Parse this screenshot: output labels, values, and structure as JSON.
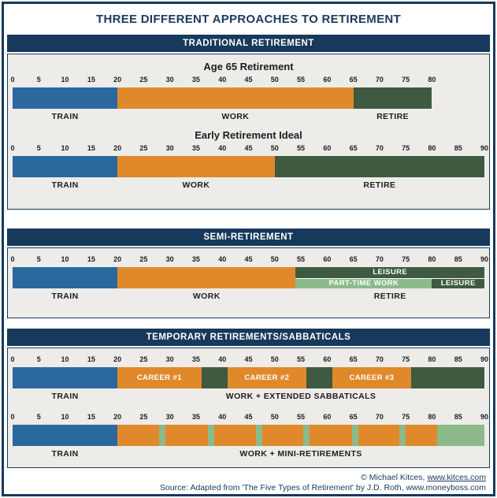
{
  "title": "THREE DIFFERENT APPROACHES TO RETIREMENT",
  "colors": {
    "navy": "#17395B",
    "train_blue": "#2A689E",
    "work_orange": "#E0892B",
    "retire_dark_green": "#3E5A41",
    "light_green": "#8CBA8A",
    "panel_bg": "#EDECE9",
    "white": "#FFFFFF"
  },
  "footer": {
    "copyright_text": "© Michael Kitces, ",
    "copyright_link": "www.kitces.com",
    "source_text": "Source: Adapted from 'The Five Types of Retirement' by J.D. Roth, www.moneyboss.com"
  },
  "chart_data": {
    "type": "bar",
    "subtype": "timeline-gantt",
    "x_unit": "age in years",
    "axis_range": [
      0,
      90
    ],
    "tick_step": 5,
    "grid": false,
    "sections": [
      {
        "header": "TRADITIONAL RETIREMENT",
        "timelines": [
          {
            "title": "Age 65 Retirement",
            "axis_max": 80,
            "ticks": [
              0,
              5,
              10,
              15,
              20,
              25,
              30,
              35,
              40,
              45,
              50,
              55,
              60,
              65,
              70,
              75,
              80
            ],
            "segments": [
              {
                "phase": "TRAIN",
                "start": 0,
                "end": 20,
                "color": "#2A689E",
                "lane": "full",
                "bar_text": ""
              },
              {
                "phase": "WORK",
                "start": 20,
                "end": 65,
                "color": "#E0892B",
                "lane": "full",
                "bar_text": ""
              },
              {
                "phase": "RETIRE",
                "start": 65,
                "end": 80,
                "color": "#3E5A41",
                "lane": "full",
                "bar_text": ""
              }
            ],
            "below_labels": [
              {
                "text": "TRAIN",
                "center": 10
              },
              {
                "text": "WORK",
                "center": 42.5
              },
              {
                "text": "RETIRE",
                "center": 72.5
              }
            ]
          },
          {
            "title": "Early Retirement Ideal",
            "axis_max": 90,
            "ticks": [
              0,
              5,
              10,
              15,
              20,
              25,
              30,
              35,
              40,
              45,
              50,
              55,
              60,
              65,
              70,
              75,
              80,
              85,
              90
            ],
            "segments": [
              {
                "phase": "TRAIN",
                "start": 0,
                "end": 20,
                "color": "#2A689E",
                "lane": "full",
                "bar_text": ""
              },
              {
                "phase": "WORK",
                "start": 20,
                "end": 50,
                "color": "#E0892B",
                "lane": "full",
                "bar_text": ""
              },
              {
                "phase": "RETIRE",
                "start": 50,
                "end": 90,
                "color": "#3E5A41",
                "lane": "full",
                "bar_text": ""
              }
            ],
            "below_labels": [
              {
                "text": "TRAIN",
                "center": 10
              },
              {
                "text": "WORK",
                "center": 35
              },
              {
                "text": "RETIRE",
                "center": 70
              }
            ]
          }
        ]
      },
      {
        "header": "SEMI-RETIREMENT",
        "timelines": [
          {
            "title": "",
            "axis_max": 90,
            "ticks": [
              0,
              5,
              10,
              15,
              20,
              25,
              30,
              35,
              40,
              45,
              50,
              55,
              60,
              65,
              70,
              75,
              80,
              85,
              90
            ],
            "segments": [
              {
                "phase": "TRAIN",
                "start": 0,
                "end": 20,
                "color": "#2A689E",
                "lane": "full",
                "bar_text": ""
              },
              {
                "phase": "WORK",
                "start": 20,
                "end": 54,
                "color": "#E0892B",
                "lane": "full",
                "bar_text": ""
              },
              {
                "phase": "RETIRE-LEISURE",
                "start": 54,
                "end": 90,
                "color": "#3E5A41",
                "lane": "top",
                "bar_text": "LEISURE"
              },
              {
                "phase": "RETIRE-PART-TIME-WORK",
                "start": 54,
                "end": 80,
                "color": "#8CBA8A",
                "lane": "bottom",
                "bar_text": "PART-TIME WORK"
              },
              {
                "phase": "RETIRE-LEISURE",
                "start": 80,
                "end": 90,
                "color": "#3E5A41",
                "lane": "bottom",
                "bar_text": "LEISURE"
              }
            ],
            "below_labels": [
              {
                "text": "TRAIN",
                "center": 10
              },
              {
                "text": "WORK",
                "center": 37
              },
              {
                "text": "RETIRE",
                "center": 72
              }
            ]
          }
        ]
      },
      {
        "header": "TEMPORARY RETIREMENTS/SABBATICALS",
        "timelines": [
          {
            "title": "",
            "axis_max": 90,
            "ticks": [
              0,
              5,
              10,
              15,
              20,
              25,
              30,
              35,
              40,
              45,
              50,
              55,
              60,
              65,
              70,
              75,
              80,
              85,
              90
            ],
            "segments": [
              {
                "phase": "TRAIN",
                "start": 0,
                "end": 20,
                "color": "#2A689E",
                "lane": "full",
                "bar_text": ""
              },
              {
                "phase": "WORK",
                "start": 20,
                "end": 36,
                "color": "#E0892B",
                "lane": "full",
                "bar_text": "CAREER #1"
              },
              {
                "phase": "SABBATICAL",
                "start": 36,
                "end": 41,
                "color": "#3E5A41",
                "lane": "full",
                "bar_text": ""
              },
              {
                "phase": "WORK",
                "start": 41,
                "end": 56,
                "color": "#E0892B",
                "lane": "full",
                "bar_text": "CAREER #2"
              },
              {
                "phase": "SABBATICAL",
                "start": 56,
                "end": 61,
                "color": "#3E5A41",
                "lane": "full",
                "bar_text": ""
              },
              {
                "phase": "WORK",
                "start": 61,
                "end": 76,
                "color": "#E0892B",
                "lane": "full",
                "bar_text": "CAREER #3"
              },
              {
                "phase": "RETIRE",
                "start": 76,
                "end": 90,
                "color": "#3E5A41",
                "lane": "full",
                "bar_text": ""
              }
            ],
            "below_labels": [
              {
                "text": "TRAIN",
                "center": 10
              },
              {
                "text": "WORK + EXTENDED SABBATICALS",
                "center": 55
              }
            ]
          },
          {
            "title": "",
            "axis_max": 90,
            "ticks": [
              0,
              5,
              10,
              15,
              20,
              25,
              30,
              35,
              40,
              45,
              50,
              55,
              60,
              65,
              70,
              75,
              80,
              85,
              90
            ],
            "segments": [
              {
                "phase": "TRAIN",
                "start": 0,
                "end": 20,
                "color": "#2A689E",
                "lane": "full",
                "bar_text": ""
              },
              {
                "phase": "WORK",
                "start": 20,
                "end": 28,
                "color": "#E0892B",
                "lane": "full",
                "bar_text": ""
              },
              {
                "phase": "MINI-RETIREMENT",
                "start": 28,
                "end": 29.2,
                "color": "#8CBA8A",
                "lane": "full",
                "bar_text": ""
              },
              {
                "phase": "WORK",
                "start": 29.2,
                "end": 37.2,
                "color": "#E0892B",
                "lane": "full",
                "bar_text": ""
              },
              {
                "phase": "MINI-RETIREMENT",
                "start": 37.2,
                "end": 38.4,
                "color": "#8CBA8A",
                "lane": "full",
                "bar_text": ""
              },
              {
                "phase": "WORK",
                "start": 38.4,
                "end": 46.4,
                "color": "#E0892B",
                "lane": "full",
                "bar_text": ""
              },
              {
                "phase": "MINI-RETIREMENT",
                "start": 46.4,
                "end": 47.6,
                "color": "#8CBA8A",
                "lane": "full",
                "bar_text": ""
              },
              {
                "phase": "WORK",
                "start": 47.6,
                "end": 55.5,
                "color": "#E0892B",
                "lane": "full",
                "bar_text": ""
              },
              {
                "phase": "MINI-RETIREMENT",
                "start": 55.5,
                "end": 56.7,
                "color": "#8CBA8A",
                "lane": "full",
                "bar_text": ""
              },
              {
                "phase": "WORK",
                "start": 56.7,
                "end": 64.7,
                "color": "#E0892B",
                "lane": "full",
                "bar_text": ""
              },
              {
                "phase": "MINI-RETIREMENT",
                "start": 64.7,
                "end": 65.9,
                "color": "#8CBA8A",
                "lane": "full",
                "bar_text": ""
              },
              {
                "phase": "WORK",
                "start": 65.9,
                "end": 73.8,
                "color": "#E0892B",
                "lane": "full",
                "bar_text": ""
              },
              {
                "phase": "MINI-RETIREMENT",
                "start": 73.8,
                "end": 75,
                "color": "#8CBA8A",
                "lane": "full",
                "bar_text": ""
              },
              {
                "phase": "WORK",
                "start": 75,
                "end": 81,
                "color": "#E0892B",
                "lane": "full",
                "bar_text": ""
              },
              {
                "phase": "RETIRE",
                "start": 81,
                "end": 90,
                "color": "#8CBA8A",
                "lane": "full",
                "bar_text": ""
              }
            ],
            "below_labels": [
              {
                "text": "TRAIN",
                "center": 10
              },
              {
                "text": "WORK + MINI-RETIREMENTS",
                "center": 55
              }
            ]
          }
        ]
      }
    ]
  }
}
